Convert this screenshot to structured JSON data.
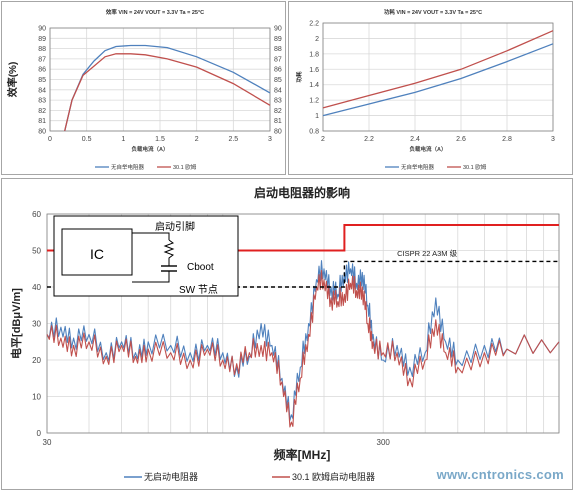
{
  "watermark": "www.cntronics.com",
  "colors": {
    "blue": "#4f81bd",
    "red": "#c0504d",
    "limit": "#e02020",
    "grid": "#d9d9d9",
    "axis": "#808080"
  },
  "chart_data": [
    {
      "type": "line",
      "title": "效率 VIN = 24V VOUT = 3.3V Ta = 25°C",
      "xlabel": "负载电流（A）",
      "ylabel": "效率(%)",
      "xlim": [
        0,
        3
      ],
      "ylim": [
        80,
        90
      ],
      "xticks": [
        "0",
        "0.5",
        "1",
        "1.5",
        "2",
        "2.5",
        "3"
      ],
      "yticks": [
        "80",
        "81",
        "82",
        "83",
        "84",
        "85",
        "86",
        "87",
        "88",
        "89",
        "90"
      ],
      "grid": true,
      "legend_position": "bottom",
      "series": [
        {
          "name": "无自举电阻器",
          "color": "#4f81bd",
          "points": [
            [
              0.2,
              80.0
            ],
            [
              0.3,
              83.0
            ],
            [
              0.45,
              85.5
            ],
            [
              0.6,
              86.8
            ],
            [
              0.75,
              87.8
            ],
            [
              0.9,
              88.2
            ],
            [
              1.1,
              88.3
            ],
            [
              1.3,
              88.3
            ],
            [
              1.6,
              88.1
            ],
            [
              2.0,
              87.2
            ],
            [
              2.5,
              85.7
            ],
            [
              3.0,
              83.7
            ]
          ]
        },
        {
          "name": "30.1 欧姆",
          "color": "#c0504d",
          "points": [
            [
              0.2,
              80.0
            ],
            [
              0.3,
              83.0
            ],
            [
              0.45,
              85.4
            ],
            [
              0.6,
              86.3
            ],
            [
              0.75,
              87.2
            ],
            [
              0.9,
              87.5
            ],
            [
              1.1,
              87.5
            ],
            [
              1.3,
              87.4
            ],
            [
              1.6,
              87.0
            ],
            [
              2.0,
              86.2
            ],
            [
              2.5,
              84.6
            ],
            [
              3.0,
              82.5
            ]
          ]
        }
      ]
    },
    {
      "type": "line",
      "title": "功耗 VIN = 24V VOUT = 3.3V Ta = 25°C",
      "xlabel": "负载电流（A）",
      "ylabel": "功耗",
      "xlim": [
        2,
        3
      ],
      "ylim": [
        0.8,
        2.2
      ],
      "xticks": [
        "2",
        "2.2",
        "2.4",
        "2.6",
        "2.8",
        "3"
      ],
      "yticks": [
        "0.8",
        "1",
        "1.2",
        "1.4",
        "1.6",
        "1.8",
        "2",
        "2.2"
      ],
      "grid": true,
      "legend_position": "bottom",
      "series": [
        {
          "name": "无自举电阻器",
          "color": "#4f81bd",
          "points": [
            [
              2.0,
              1.0
            ],
            [
              2.2,
              1.15
            ],
            [
              2.4,
              1.3
            ],
            [
              2.6,
              1.48
            ],
            [
              2.8,
              1.7
            ],
            [
              3.0,
              1.93
            ]
          ]
        },
        {
          "name": "30.1 欧姆",
          "color": "#c0504d",
          "points": [
            [
              2.0,
              1.1
            ],
            [
              2.2,
              1.26
            ],
            [
              2.4,
              1.42
            ],
            [
              2.6,
              1.6
            ],
            [
              2.8,
              1.84
            ],
            [
              3.0,
              2.1
            ]
          ]
        }
      ]
    },
    {
      "type": "line",
      "title": "启动电阻器的影响",
      "xlabel": "频率[MHz]",
      "ylabel": "电平[dBμV/m]",
      "xscale": "log",
      "xlim": [
        30,
        1000
      ],
      "ylim": [
        0,
        60
      ],
      "xticks": [
        "30",
        "300"
      ],
      "yticks": [
        "0",
        "10",
        "20",
        "30",
        "40",
        "50",
        "60"
      ],
      "grid": true,
      "legend_position": "bottom",
      "limit_label": "CISPR 22 A3M 级",
      "limits": [
        {
          "style": "solid",
          "color": "#e02020",
          "points": [
            [
              30,
              50
            ],
            [
              230,
              50
            ],
            [
              230,
              57
            ],
            [
              1000,
              57
            ]
          ]
        },
        {
          "style": "dashed",
          "color": "#000000",
          "points": [
            [
              30,
              40
            ],
            [
              230,
              40
            ],
            [
              230,
              47
            ],
            [
              1000,
              47
            ]
          ]
        }
      ],
      "series": [
        {
          "name": "无启动电阻器",
          "color": "#4f81bd",
          "points": [
            [
              30,
              27
            ],
            [
              33,
              29
            ],
            [
              36,
              26
            ],
            [
              40,
              27
            ],
            [
              45,
              22
            ],
            [
              50,
              25
            ],
            [
              55,
              22
            ],
            [
              60,
              25
            ],
            [
              70,
              24
            ],
            [
              80,
              22
            ],
            [
              90,
              24
            ],
            [
              100,
              22
            ],
            [
              110,
              18
            ],
            [
              120,
              21
            ],
            [
              130,
              30
            ],
            [
              140,
              24
            ],
            [
              150,
              15
            ],
            [
              160,
              5
            ],
            [
              170,
              18
            ],
            [
              180,
              30
            ],
            [
              190,
              42
            ],
            [
              200,
              45
            ],
            [
              210,
              40
            ],
            [
              220,
              38
            ],
            [
              230,
              44
            ],
            [
              240,
              45
            ],
            [
              250,
              41
            ],
            [
              260,
              44
            ],
            [
              270,
              35
            ],
            [
              280,
              27
            ],
            [
              300,
              20
            ],
            [
              330,
              24
            ],
            [
              360,
              18
            ],
            [
              400,
              22
            ],
            [
              430,
              37
            ],
            [
              460,
              25
            ],
            [
              500,
              20
            ],
            [
              600,
              24
            ],
            [
              700,
              23
            ],
            [
              1000,
              25
            ]
          ]
        },
        {
          "name": "30.1 欧姆启动电阻器",
          "color": "#c0504d",
          "points": [
            [
              30,
              27
            ],
            [
              33,
              26
            ],
            [
              36,
              24
            ],
            [
              40,
              25
            ],
            [
              45,
              21
            ],
            [
              50,
              24
            ],
            [
              55,
              21
            ],
            [
              60,
              23
            ],
            [
              70,
              22
            ],
            [
              80,
              20
            ],
            [
              90,
              23
            ],
            [
              100,
              20
            ],
            [
              110,
              19
            ],
            [
              120,
              22
            ],
            [
              130,
              24
            ],
            [
              140,
              22
            ],
            [
              150,
              14
            ],
            [
              160,
              3
            ],
            [
              170,
              15
            ],
            [
              180,
              27
            ],
            [
              190,
              40
            ],
            [
              200,
              42
            ],
            [
              210,
              37
            ],
            [
              220,
              36
            ],
            [
              230,
              38
            ],
            [
              240,
              41
            ],
            [
              250,
              39
            ],
            [
              260,
              40
            ],
            [
              270,
              30
            ],
            [
              280,
              25
            ],
            [
              300,
              22
            ],
            [
              330,
              22
            ],
            [
              360,
              15
            ],
            [
              400,
              20
            ],
            [
              430,
              31
            ],
            [
              460,
              22
            ],
            [
              500,
              18
            ],
            [
              600,
              22
            ],
            [
              700,
              23
            ],
            [
              1000,
              25
            ]
          ]
        }
      ],
      "inset": {
        "ic": "IC",
        "pin": "启动引脚",
        "cap": "Cboot",
        "node": "SW 节点"
      }
    }
  ]
}
